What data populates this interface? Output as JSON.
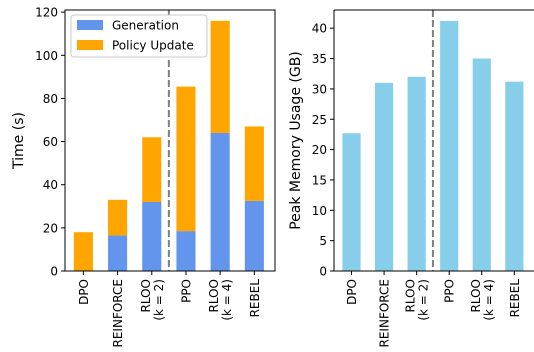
{
  "chart_data": [
    {
      "type": "bar",
      "stacked": true,
      "categories": [
        "DPO",
        "REINFORCE",
        "RLOO\n(k = 2)",
        "PPO",
        "RLOO\n(k = 4)",
        "REBEL"
      ],
      "series": [
        {
          "name": "Generation",
          "values": [
            0,
            16.5,
            32,
            18.5,
            64,
            32.5
          ]
        },
        {
          "name": "Policy Update",
          "values": [
            18,
            16.5,
            30,
            67,
            52,
            34.5
          ]
        }
      ],
      "ylabel": "Time (s)",
      "xlabel": "",
      "ylim": [
        0,
        121
      ],
      "yticks": [
        0,
        20,
        40,
        60,
        80,
        100,
        120
      ],
      "divider_after_category": 2,
      "legend_position": "top-left",
      "grid": false,
      "colors": {
        "Generation": "#6495ED",
        "Policy Update": "#FFA500",
        "divider": "#808080"
      }
    },
    {
      "type": "bar",
      "categories": [
        "DPO",
        "REINFORCE",
        "RLOO\n(k = 2)",
        "PPO",
        "RLOO\n(k = 4)",
        "REBEL"
      ],
      "values": [
        22.7,
        31,
        32,
        41.2,
        35,
        31.2
      ],
      "ylabel": "Peak Memory Usage (GB)",
      "xlabel": "",
      "ylim": [
        0,
        43
      ],
      "yticks": [
        0,
        5,
        10,
        15,
        20,
        25,
        30,
        35,
        40
      ],
      "divider_after_category": 2,
      "grid": false,
      "colors": {
        "bar": "#87CEEB",
        "divider": "#808080"
      }
    }
  ]
}
